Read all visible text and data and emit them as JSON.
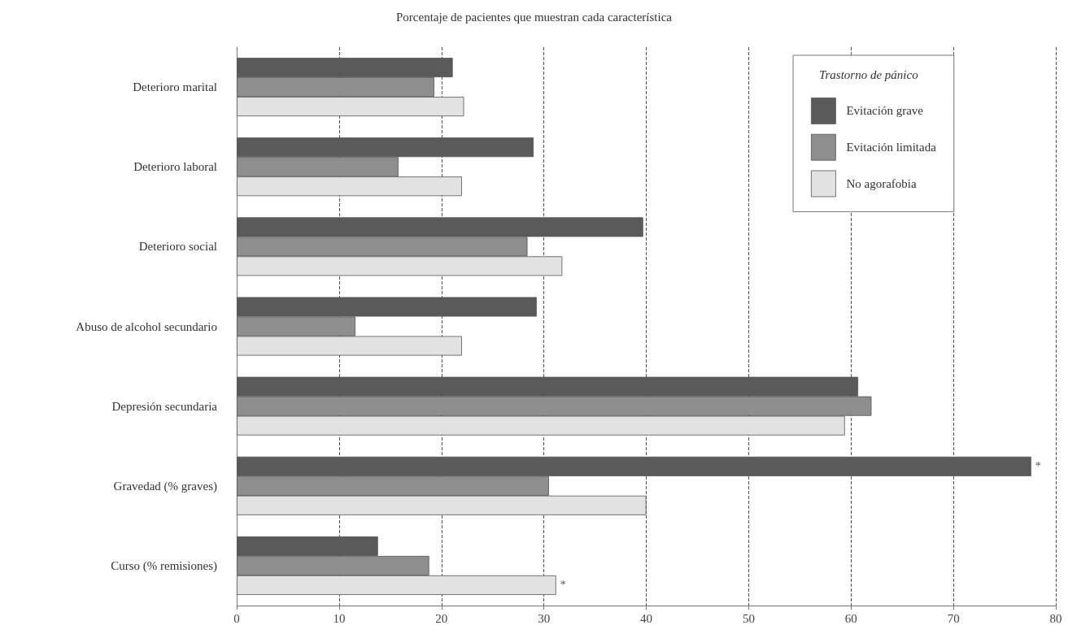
{
  "chart_data": {
    "type": "bar",
    "orientation": "horizontal",
    "title": "Porcentaje de pacientes que muestran cada característica",
    "categories": [
      "Deterioro marital",
      "Deterioro laboral",
      "Deterioro social",
      "Abuso de alcohol secundario",
      "Depresión secundaria",
      "Gravedad (% graves)",
      "Curso (% remisiones)"
    ],
    "series": [
      {
        "name": "Evitación grave",
        "color": "#5a5a5a",
        "values": [
          21.1,
          29.0,
          39.7,
          29.3,
          60.7,
          77.6,
          13.8
        ],
        "value_labels": [
          null,
          null,
          null,
          null,
          null,
          "*",
          null
        ]
      },
      {
        "name": "Evitación limitada",
        "color": "#8e8e8e",
        "values": [
          19.3,
          15.8,
          28.4,
          11.6,
          62.0,
          30.5,
          18.8
        ]
      },
      {
        "name": "No agorafobia",
        "color": "#e2e2e2",
        "values": [
          22.2,
          22.0,
          31.8,
          22.0,
          59.4,
          40.0,
          31.2
        ],
        "value_labels": [
          null,
          null,
          null,
          null,
          null,
          null,
          "*"
        ]
      }
    ],
    "legend_title": "Trastorno de pánico",
    "legend": "top right",
    "xlim": [
      0,
      80
    ],
    "xticks": [
      0,
      10,
      20,
      30,
      40,
      50,
      60,
      70,
      80
    ],
    "grid": "x"
  }
}
